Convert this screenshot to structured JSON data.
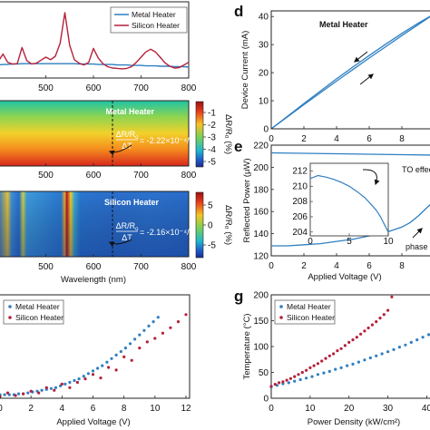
{
  "chart_data": [
    {
      "panel": "",
      "type": "line",
      "x": [
        400,
        410,
        420,
        430,
        440,
        450,
        460,
        470,
        480,
        490,
        500,
        510,
        520,
        530,
        540,
        550,
        560,
        570,
        580,
        590,
        600,
        610,
        620,
        630,
        640,
        650,
        660,
        670,
        680,
        690,
        700,
        710,
        720,
        730,
        740,
        750,
        760,
        770,
        780,
        790,
        800
      ],
      "series": [
        {
          "name": "Metal Heater",
          "color": "#2f7fc1",
          "values": [
            0.6,
            0.61,
            0.61,
            0.62,
            0.62,
            0.63,
            0.63,
            0.63,
            0.63,
            0.63,
            0.63,
            0.63,
            0.63,
            0.63,
            0.63,
            0.63,
            0.63,
            0.62,
            0.62,
            0.62,
            0.62,
            0.61,
            0.61,
            0.61,
            0.61,
            0.6,
            0.6,
            0.6,
            0.59,
            0.59,
            0.59,
            0.58,
            0.58,
            0.58,
            0.57,
            0.57,
            0.57,
            0.56,
            0.56,
            0.56,
            0.55
          ]
        },
        {
          "name": "Silicon Heater",
          "color": "#b5213a",
          "values": [
            0.68,
            0.85,
            0.66,
            0.62,
            0.63,
            1.0,
            0.7,
            0.62,
            0.64,
            0.71,
            0.78,
            0.72,
            0.8,
            1.1,
            1.8,
            1.05,
            0.72,
            0.64,
            0.6,
            0.66,
            0.98,
            0.76,
            0.63,
            0.56,
            0.53,
            0.52,
            0.51,
            0.52,
            0.56,
            0.66,
            0.78,
            0.9,
            0.96,
            0.9,
            0.78,
            0.65,
            0.57,
            0.53,
            0.54,
            0.6,
            0.66
          ]
        }
      ],
      "xticks": [
        500,
        600,
        700,
        800
      ],
      "xlim": [
        400,
        800
      ]
    },
    {
      "panel": "",
      "type": "heatmap",
      "title": "Metal Heater",
      "annotation_lhs_num": "ΔR/R",
      "annotation_lhs_sub": "o",
      "annotation_lhs_den": "ΔT",
      "annotation_rhs": "= -2.22×10⁻⁴/°C",
      "colorbar_label": "ΔR/R₀ (%)",
      "colorbar_ticks": [
        "-1",
        "-2",
        "-3",
        "-4",
        "-5"
      ],
      "xticks": [
        500,
        600,
        700,
        800
      ],
      "xlim": [
        400,
        800
      ],
      "dashed_line_x": 640
    },
    {
      "panel": "",
      "type": "heatmap",
      "title": "Silicon Heater",
      "annotation_lhs_num": "ΔR/R",
      "annotation_lhs_sub": "o",
      "annotation_lhs_den": "ΔT",
      "annotation_rhs": "= -2.16×10⁻⁴/°C",
      "colorbar_label": "ΔR/R₀ (%)",
      "colorbar_ticks": [
        "5",
        "0",
        "-5"
      ],
      "xticks": [
        500,
        600,
        700,
        800
      ],
      "xlim": [
        400,
        800
      ],
      "xlabel": "Wavelength (nm)",
      "dashed_line_x": 640,
      "peaks": [
        420,
        450,
        540,
        560
      ]
    },
    {
      "panel": "",
      "type": "scatter",
      "xlabel": "Applied Voltage (V)",
      "xticks": [
        0,
        2,
        4,
        6,
        8,
        10,
        12
      ],
      "xlim": [
        0,
        12
      ],
      "ylim": [
        0,
        1
      ],
      "series": [
        {
          "name": "Metal Heater",
          "color": "#2f7fc1",
          "x": [
            0,
            0.3,
            0.6,
            0.9,
            1.2,
            1.5,
            1.8,
            2.1,
            2.4,
            2.7,
            3.0,
            3.3,
            3.6,
            3.9,
            4.2,
            4.5,
            4.8,
            5.1,
            5.4,
            5.7,
            6.0,
            6.3,
            6.6,
            6.9,
            7.2,
            7.5,
            7.8,
            8.1,
            8.4,
            8.7,
            9.0,
            9.3,
            9.6,
            9.9,
            10.2
          ],
          "y": [
            0.02,
            0.02,
            0.02,
            0.02,
            0.03,
            0.03,
            0.04,
            0.05,
            0.06,
            0.07,
            0.08,
            0.09,
            0.1,
            0.12,
            0.14,
            0.16,
            0.18,
            0.2,
            0.23,
            0.26,
            0.29,
            0.32,
            0.35,
            0.39,
            0.43,
            0.47,
            0.51,
            0.55,
            0.6,
            0.65,
            0.7,
            0.75,
            0.8,
            0.85,
            0.9
          ]
        },
        {
          "name": "Silicon Heater",
          "color": "#b5213a",
          "x": [
            0,
            0.5,
            1.0,
            1.5,
            2.0,
            2.5,
            3.0,
            3.5,
            4.0,
            4.5,
            5.0,
            5.5,
            6.0,
            6.5,
            7.0,
            7.5,
            8.0,
            8.5,
            9.0,
            9.5,
            10.0,
            10.5,
            11.0,
            11.5,
            12.0
          ],
          "y": [
            0.0,
            0.04,
            0.01,
            0.03,
            0.06,
            0.04,
            0.1,
            0.07,
            0.14,
            0.1,
            0.16,
            0.2,
            0.25,
            0.21,
            0.33,
            0.3,
            0.45,
            0.41,
            0.55,
            0.62,
            0.66,
            0.72,
            0.78,
            0.85,
            0.93
          ]
        }
      ]
    },
    {
      "panel": "d",
      "type": "line",
      "title": "Metal Heater",
      "ylabel": "Device Current (mA)",
      "yticks": [
        0,
        10,
        20,
        30,
        40
      ],
      "ylim": [
        0,
        42
      ],
      "xlim": [
        0,
        10
      ],
      "xticks": [
        0,
        2,
        4,
        6,
        8
      ],
      "x": [
        0,
        1,
        2,
        3,
        4,
        5,
        6,
        7,
        8,
        9,
        10
      ],
      "series": [
        {
          "name": "",
          "values": [
            0,
            4.3,
            8.6,
            12.8,
            17.0,
            21.1,
            25.2,
            29.2,
            33.2,
            37.1,
            41
          ]
        },
        {
          "name": "",
          "values": [
            0,
            4.5,
            9.0,
            13.4,
            17.8,
            22.0,
            26.1,
            30.1,
            34.0,
            37.6,
            41
          ]
        }
      ]
    },
    {
      "panel": "e",
      "type": "line",
      "ylabel": "Reflected Power (μW)",
      "xlabel": "Applied Voltage (V)",
      "yticks": [
        120,
        140,
        160,
        180,
        200,
        220
      ],
      "ylim": [
        120,
        220
      ],
      "xticks": [
        0,
        2,
        4,
        6,
        8
      ],
      "xlim": [
        0,
        10
      ],
      "annotation_to": "TO effec",
      "annotation_phase": "phase",
      "series": [
        {
          "name": "",
          "x": [
            0,
            2,
            4,
            6,
            8,
            10
          ],
          "values": [
            213,
            212.6,
            212.2,
            211.8,
            211.4,
            211
          ]
        },
        {
          "name": "",
          "x": [
            0,
            1,
            2,
            3,
            4,
            5,
            6,
            7,
            8,
            8.5,
            9,
            9.5,
            10
          ],
          "values": [
            129,
            129,
            130,
            131,
            133,
            135,
            138,
            141,
            146,
            150,
            156,
            163,
            170
          ]
        }
      ],
      "inset": {
        "xticks": [
          0,
          5,
          10
        ],
        "yticks": [
          204,
          206,
          208,
          210,
          212
        ],
        "xlim": [
          0,
          10
        ],
        "ylim": [
          203.5,
          213
        ],
        "x": [
          0,
          1,
          2,
          3,
          4,
          5,
          6,
          7,
          8,
          8.5,
          9,
          9.5,
          10
        ],
        "values": [
          211.0,
          211.4,
          211.2,
          210.9,
          210.5,
          210.0,
          209.3,
          208.5,
          207.4,
          206.8,
          206.0,
          205.0,
          204.0
        ]
      }
    },
    {
      "panel": "g",
      "type": "scatter",
      "ylabel": "Temperature (°C)",
      "xlabel": "Power Density (kW/cm²)",
      "yticks": [
        0,
        50,
        100,
        150,
        200
      ],
      "ylim": [
        0,
        200
      ],
      "xticks": [
        0,
        10,
        20,
        30,
        40
      ],
      "xlim": [
        0,
        42
      ],
      "series": [
        {
          "name": "Metal Heater",
          "color": "#2f7fc1",
          "x": [
            0,
            1.5,
            3,
            4.5,
            6,
            7.5,
            9,
            10.5,
            12,
            13.5,
            15,
            16.5,
            18,
            19.5,
            21,
            22.5,
            24,
            25.5,
            27,
            28.5,
            30,
            31.5,
            33,
            34.5,
            36,
            37.5,
            39,
            40.5,
            42
          ],
          "y": [
            22,
            25,
            28,
            30,
            33,
            36,
            39,
            42,
            46,
            49,
            52,
            56,
            59,
            63,
            66,
            70,
            74,
            78,
            82,
            86,
            90,
            94,
            99,
            103,
            108,
            113,
            118,
            123,
            128
          ]
        },
        {
          "name": "Silicon Heater",
          "color": "#b5213a",
          "x": [
            0,
            1,
            2,
            3,
            4,
            5,
            6,
            7,
            8,
            9,
            10,
            11,
            12,
            13,
            14,
            15,
            16,
            17,
            18,
            19,
            20,
            21,
            22,
            23,
            24,
            25,
            26,
            27,
            28,
            29,
            30,
            31
          ],
          "y": [
            23,
            27,
            30,
            32,
            35,
            38,
            42,
            46,
            50,
            54,
            59,
            63,
            67,
            72,
            77,
            82,
            86,
            92,
            96,
            102,
            108,
            113,
            118,
            124,
            130,
            136,
            142,
            148,
            155,
            162,
            170,
            196
          ]
        }
      ]
    }
  ]
}
